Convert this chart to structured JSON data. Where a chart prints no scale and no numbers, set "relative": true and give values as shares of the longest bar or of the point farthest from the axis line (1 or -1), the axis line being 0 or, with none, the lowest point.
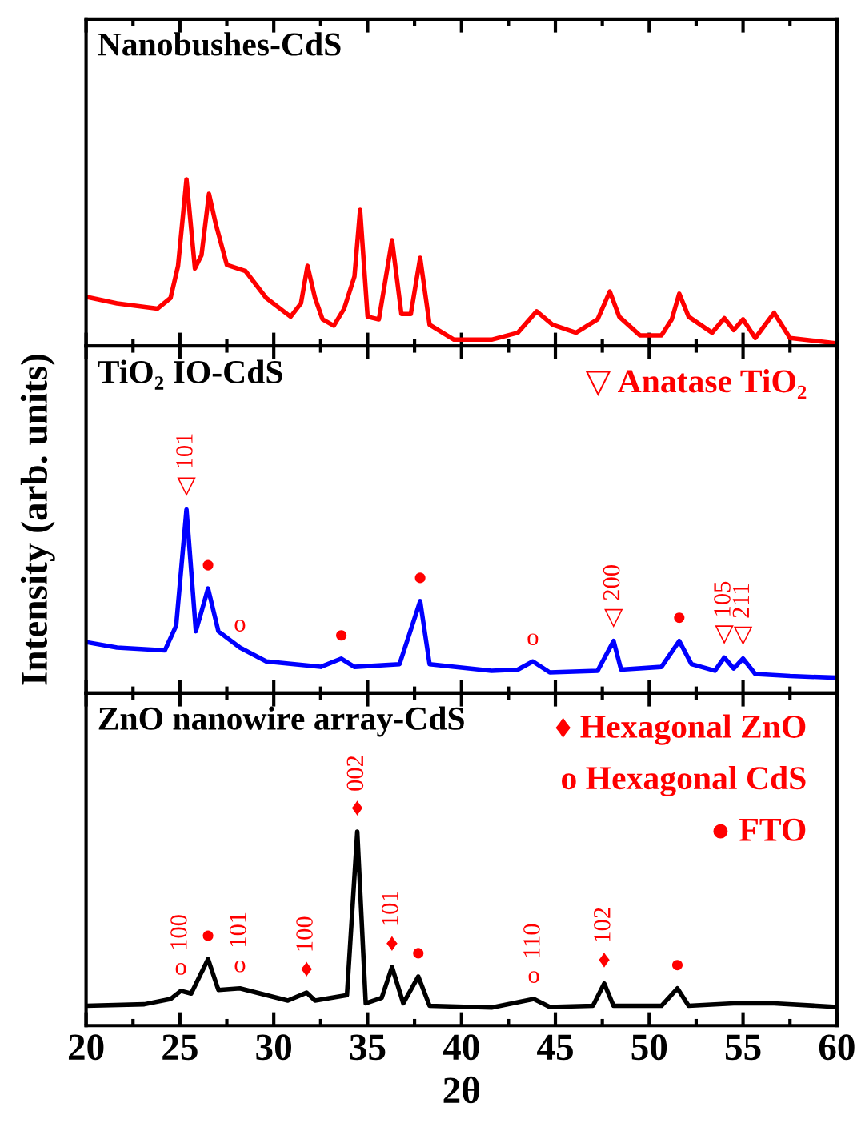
{
  "chart_data": [
    {
      "type": "line",
      "relative": true,
      "title": "Nanobushes-CdS",
      "tick_labels": false,
      "xlim": [
        20,
        60
      ],
      "xticks": [
        20,
        25,
        30,
        35,
        40,
        45,
        50,
        55,
        60
      ],
      "x": [
        20,
        21.65,
        23.8,
        24.5,
        24.9,
        25.35,
        25.8,
        26.15,
        26.55,
        26.9,
        27.5,
        28.5,
        29.6,
        30.9,
        31.45,
        31.8,
        32.2,
        32.6,
        33.2,
        33.75,
        34.3,
        34.6,
        35.0,
        35.6,
        36.3,
        36.8,
        37.3,
        37.8,
        38.3,
        39.6,
        41.6,
        43.0,
        44.0,
        44.85,
        46.1,
        47.25,
        47.9,
        48.4,
        49.5,
        50.65,
        51.2,
        51.6,
        52.1,
        53.35,
        54.0,
        54.5,
        55.0,
        55.65,
        56.65,
        57.5,
        60
      ],
      "series": [
        {
          "color": "#ff0000",
          "values": [
            0.295,
            0.256,
            0.224,
            0.288,
            0.48,
            1.0,
            0.465,
            0.545,
            0.913,
            0.737,
            0.487,
            0.449,
            0.288,
            0.176,
            0.256,
            0.481,
            0.288,
            0.16,
            0.122,
            0.224,
            0.417,
            0.817,
            0.176,
            0.16,
            0.635,
            0.192,
            0.192,
            0.529,
            0.128,
            0.038,
            0.038,
            0.08,
            0.208,
            0.128,
            0.08,
            0.16,
            0.327,
            0.176,
            0.064,
            0.064,
            0.16,
            0.314,
            0.176,
            0.08,
            0.167,
            0.096,
            0.16,
            0.048,
            0.199,
            0.048,
            0.016
          ]
        }
      ]
    },
    {
      "type": "line",
      "relative": true,
      "title": "TiO₂ IO-CdS",
      "ylabel": "Intensity (arb. units)",
      "tick_labels": false,
      "xlim": [
        20,
        60
      ],
      "xticks": [
        20,
        25,
        30,
        35,
        40,
        45,
        50,
        55,
        60
      ],
      "x": [
        20,
        21.65,
        24.2,
        24.8,
        25.35,
        25.85,
        26.5,
        27.05,
        28.2,
        29.6,
        32.5,
        33.6,
        34.3,
        36.7,
        37.8,
        38.3,
        41.6,
        43.0,
        43.8,
        44.7,
        47.25,
        48.1,
        48.5,
        50.65,
        51.6,
        52.25,
        53.5,
        54.0,
        54.5,
        55.0,
        55.65,
        57.5,
        60
      ],
      "series": [
        {
          "color": "#0000ff",
          "values": [
            0.278,
            0.248,
            0.233,
            0.367,
            1.0,
            0.337,
            0.57,
            0.337,
            0.248,
            0.173,
            0.143,
            0.188,
            0.143,
            0.158,
            0.501,
            0.158,
            0.122,
            0.128,
            0.173,
            0.113,
            0.122,
            0.284,
            0.128,
            0.143,
            0.284,
            0.158,
            0.122,
            0.194,
            0.134,
            0.188,
            0.104,
            0.093,
            0.084
          ]
        }
      ],
      "annotations": [
        "▽ Anatase TiO₂",
        {
          "text": "▽",
          "x": 25.35,
          "y": 1.0
        },
        {
          "text": "101",
          "x": 25.35,
          "y": 1.0
        },
        {
          "text": "●",
          "x": 26.5,
          "y": 0.57
        },
        {
          "text": "o",
          "x": 28.2,
          "y": 0.248
        },
        {
          "text": "●",
          "x": 33.6,
          "y": 0.188
        },
        {
          "text": "●",
          "x": 37.8,
          "y": 0.501
        },
        {
          "text": "o",
          "x": 43.8,
          "y": 0.173
        },
        {
          "text": "▽",
          "x": 48.1,
          "y": 0.284
        },
        {
          "text": "200",
          "x": 48.1,
          "y": 0.284
        },
        {
          "text": "●",
          "x": 51.6,
          "y": 0.284
        },
        {
          "text": "▽",
          "x": 54.0,
          "y": 0.194
        },
        {
          "text": "105",
          "x": 54.0,
          "y": 0.194
        },
        {
          "text": "▽",
          "x": 55.0,
          "y": 0.188
        },
        {
          "text": "211",
          "x": 55.0,
          "y": 0.188
        }
      ]
    },
    {
      "type": "line",
      "relative": true,
      "title": "ZnO nanowire array-CdS",
      "xlabel": "2θ",
      "tick_labels": "x",
      "xlim": [
        20,
        60
      ],
      "xticks": [
        20,
        25,
        30,
        35,
        40,
        45,
        50,
        55,
        60
      ],
      "x": [
        20,
        23.1,
        24.5,
        25.05,
        25.6,
        26.5,
        27.05,
        28.2,
        30.75,
        31.75,
        32.2,
        33.9,
        34.45,
        34.9,
        35.75,
        36.3,
        36.9,
        37.7,
        38.3,
        41.6,
        43.85,
        44.7,
        47.0,
        47.6,
        48.1,
        50.65,
        51.5,
        52.1,
        54.5,
        56.65,
        60
      ],
      "series": [
        {
          "color": "#000000",
          "values": [
            0.102,
            0.11,
            0.137,
            0.179,
            0.165,
            0.343,
            0.184,
            0.192,
            0.129,
            0.17,
            0.129,
            0.157,
            1.0,
            0.115,
            0.143,
            0.302,
            0.115,
            0.253,
            0.102,
            0.093,
            0.137,
            0.096,
            0.102,
            0.217,
            0.102,
            0.102,
            0.192,
            0.102,
            0.115,
            0.115,
            0.096
          ]
        }
      ],
      "annotations": [
        "♦ Hexagonal ZnO",
        "o Hexagonal CdS",
        "● FTO",
        {
          "text": "o",
          "x": 25.05,
          "y": 0.179
        },
        {
          "text": "100",
          "x": 25.05,
          "y": 0.179
        },
        {
          "text": "●",
          "x": 26.5,
          "y": 0.343
        },
        {
          "text": "o",
          "x": 28.2,
          "y": 0.192
        },
        {
          "text": "101",
          "x": 28.2,
          "y": 0.192
        },
        {
          "text": "♦",
          "x": 31.75,
          "y": 0.17
        },
        {
          "text": "100",
          "x": 31.75,
          "y": 0.17
        },
        {
          "text": "♦",
          "x": 34.45,
          "y": 1.0
        },
        {
          "text": "002",
          "x": 34.45,
          "y": 1.0
        },
        {
          "text": "♦",
          "x": 36.3,
          "y": 0.302
        },
        {
          "text": "101",
          "x": 36.3,
          "y": 0.302
        },
        {
          "text": "●",
          "x": 37.7,
          "y": 0.253
        },
        {
          "text": "o",
          "x": 43.85,
          "y": 0.137
        },
        {
          "text": "110",
          "x": 43.85,
          "y": 0.137
        },
        {
          "text": "♦",
          "x": 47.6,
          "y": 0.217
        },
        {
          "text": "102",
          "x": 47.6,
          "y": 0.217
        },
        {
          "text": "●",
          "x": 51.5,
          "y": 0.192
        }
      ]
    }
  ]
}
